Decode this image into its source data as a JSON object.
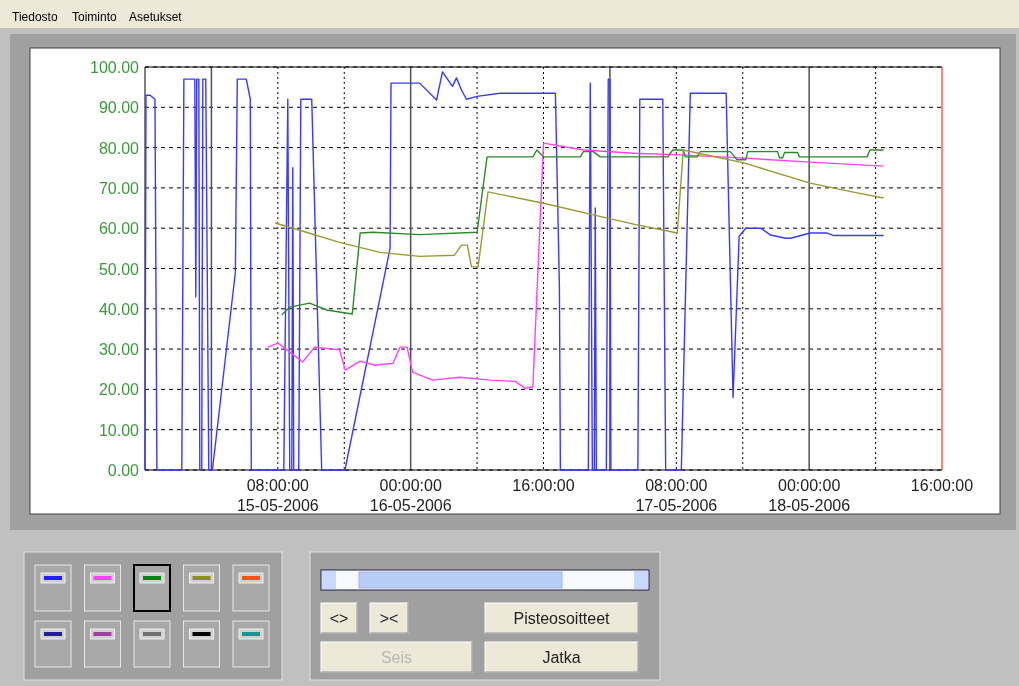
{
  "chart_data": {
    "type": "line",
    "xlim": [
      "2006-05-14T16:00",
      "2006-05-18T16:00"
    ],
    "xticks": [
      {
        "value": "2006-05-15T00:00",
        "label": null
      },
      {
        "value": "2006-05-15T08:00",
        "label": "08:00:00\n15-05-2006"
      },
      {
        "value": "2006-05-15T16:00",
        "label": null
      },
      {
        "value": "2006-05-16T00:00",
        "label": "00:00:00\n16-05-2006"
      },
      {
        "value": "2006-05-16T08:00",
        "label": null
      },
      {
        "value": "2006-05-16T16:00",
        "label": "16:00:00"
      },
      {
        "value": "2006-05-17T00:00",
        "label": null
      },
      {
        "value": "2006-05-17T08:00",
        "label": "08:00:00\n17-05-2006"
      },
      {
        "value": "2006-05-17T16:00",
        "label": null
      },
      {
        "value": "2006-05-18T00:00",
        "label": "00:00:00\n18-05-2006"
      },
      {
        "value": "2006-05-18T08:00",
        "label": null
      },
      {
        "value": "2006-05-18T16:00",
        "label": "16:00:00"
      }
    ],
    "ylim": [
      0,
      100
    ],
    "yticks": [
      {
        "value": 0,
        "label": "0.00"
      },
      {
        "value": 10,
        "label": "10.00"
      },
      {
        "value": 20,
        "label": "20.00"
      },
      {
        "value": 30,
        "label": "30.00"
      },
      {
        "value": 40,
        "label": "40.00"
      },
      {
        "value": 50,
        "label": "50.00"
      },
      {
        "value": 60,
        "label": "60.00"
      },
      {
        "value": 70,
        "label": "70.00"
      },
      {
        "value": 80,
        "label": "80.00"
      },
      {
        "value": 90,
        "label": "90.00"
      },
      {
        "value": 100,
        "label": "100.00"
      }
    ],
    "grid": true,
    "ref_lines": [
      {
        "axis": "x",
        "value": "2006-05-18T16:00",
        "color": "#ff6040"
      }
    ],
    "series": [
      {
        "color": "#3a3aff",
        "x": [
          "2006-05-14T16:00",
          "2006-05-14T16:07",
          "2006-05-14T16:36",
          "2006-05-14T17:12",
          "2006-05-14T17:26",
          "2006-05-14T20:26",
          "2006-05-14T20:41",
          "2006-05-14T22:00",
          "2006-05-14T22:07",
          "2006-05-14T22:14",
          "2006-05-14T22:29",
          "2006-05-14T22:36",
          "2006-05-14T22:50",
          "2006-05-14T22:58",
          "2006-05-14T23:19",
          "2006-05-14T23:41",
          "2006-05-15T00:07",
          "2006-05-15T02:53",
          "2006-05-15T03:07",
          "2006-05-15T04:12",
          "2006-05-15T04:41",
          "2006-05-15T04:48",
          "2006-05-15T08:43",
          "2006-05-15T09:12",
          "2006-05-15T09:26",
          "2006-05-15T09:41",
          "2006-05-15T09:48",
          "2006-05-15T09:55",
          "2006-05-15T10:31",
          "2006-05-15T10:46",
          "2006-05-15T12:05",
          "2006-05-15T13:17",
          "2006-05-15T16:05",
          "2006-05-15T21:31",
          "2006-05-15T21:38",
          "2006-05-16T01:05",
          "2006-05-16T03:07",
          "2006-05-16T03:50",
          "2006-05-16T05:02",
          "2006-05-16T05:31",
          "2006-05-16T06:07",
          "2006-05-16T06:43",
          "2006-05-16T08:00",
          "2006-05-16T10:46",
          "2006-05-16T17:12",
          "2006-05-16T17:26",
          "2006-05-16T17:55",
          "2006-05-16T18:02",
          "2006-05-16T21:24",
          "2006-05-16T21:38",
          "2006-05-16T21:53",
          "2006-05-16T22:07",
          "2006-05-16T22:14",
          "2006-05-16T22:22",
          "2006-05-16T23:34",
          "2006-05-16T23:48",
          "2006-05-17T00:00",
          "2006-05-17T00:07",
          "2006-05-17T03:22",
          "2006-05-17T03:36",
          "2006-05-17T06:22",
          "2006-05-17T06:43",
          "2006-05-17T08:36",
          "2006-05-17T09:41",
          "2006-05-17T14:00",
          "2006-05-17T14:50",
          "2006-05-17T15:34",
          "2006-05-17T16:22",
          "2006-05-17T18:10",
          "2006-05-17T19:22",
          "2006-05-17T21:10",
          "2006-05-17T21:46",
          "2006-05-18T00:07",
          "2006-05-18T02:10",
          "2006-05-18T02:53",
          "2006-05-18T08:58"
        ],
        "values": [
          0,
          93,
          93,
          92,
          0,
          0,
          97,
          97,
          43,
          97,
          97,
          0,
          0,
          97,
          97,
          0,
          0,
          49,
          97,
          97,
          92,
          0,
          0,
          92,
          0,
          0,
          75,
          0,
          0,
          92,
          92,
          0,
          0,
          55,
          96,
          96,
          91.8,
          98.8,
          95.2,
          97.3,
          94.3,
          92,
          92.7,
          93.5,
          93.5,
          93.5,
          45.4,
          0,
          0,
          96,
          0,
          0,
          65,
          0,
          0,
          97,
          97,
          0,
          0,
          92,
          92,
          0,
          0,
          93.5,
          93.5,
          18,
          58,
          60,
          60,
          58.3,
          57.5,
          57.5,
          58.8,
          58.8,
          58.2,
          58.2
        ]
      },
      {
        "color": "#ff40ff",
        "x": [
          "2006-05-15T06:50",
          "2006-05-15T08:00",
          "2006-05-15T09:05",
          "2006-05-15T11:00",
          "2006-05-15T12:26",
          "2006-05-15T15:26",
          "2006-05-15T16:07",
          "2006-05-15T17:55",
          "2006-05-15T19:43",
          "2006-05-15T21:53",
          "2006-05-15T22:43",
          "2006-05-15T23:34",
          "2006-05-16T00:14",
          "2006-05-16T02:38",
          "2006-05-16T05:53",
          "2006-05-16T09:34",
          "2006-05-16T12:34",
          "2006-05-16T13:46",
          "2006-05-16T14:43",
          "2006-05-16T16:00",
          "2006-05-16T20:48",
          "2006-05-17T02:53",
          "2006-05-17T08:29",
          "2006-05-17T16:07",
          "2006-05-18T00:07",
          "2006-05-18T08:58"
        ],
        "values": [
          30.5,
          31.5,
          29.8,
          26.8,
          30.5,
          29.8,
          24.8,
          27,
          26,
          26.5,
          30.5,
          30.5,
          24.3,
          22.3,
          23,
          22.3,
          22,
          20.3,
          20.6,
          81.1,
          79.4,
          78.6,
          78.2,
          77.4,
          76.4,
          75.4
        ]
      },
      {
        "color": "#2a8a2a",
        "x": [
          "2006-05-15T08:29",
          "2006-05-15T09:26",
          "2006-05-15T11:50",
          "2006-05-15T13:53",
          "2006-05-15T16:58",
          "2006-05-15T17:55",
          "2006-05-15T19:29",
          "2006-05-16T01:05",
          "2006-05-16T08:00",
          "2006-05-16T09:12",
          "2006-05-16T14:43",
          "2006-05-16T15:12",
          "2006-05-16T16:00",
          "2006-05-16T20:26",
          "2006-05-16T20:48",
          "2006-05-16T22:00",
          "2006-05-16T22:50",
          "2006-05-17T06:58",
          "2006-05-17T07:34",
          "2006-05-17T08:50",
          "2006-05-17T09:05",
          "2006-05-17T10:31",
          "2006-05-17T10:53",
          "2006-05-17T14:29",
          "2006-05-17T15:19",
          "2006-05-17T16:22",
          "2006-05-17T16:36",
          "2006-05-17T20:12",
          "2006-05-17T20:26",
          "2006-05-17T20:48",
          "2006-05-17T21:02",
          "2006-05-17T22:36",
          "2006-05-17T22:50",
          "2006-05-18T06:58",
          "2006-05-18T07:19",
          "2006-05-18T08:58"
        ],
        "values": [
          38.5,
          40.4,
          41.4,
          39.7,
          38.7,
          58.8,
          59,
          58.4,
          59,
          77.7,
          77.7,
          79.4,
          77.7,
          77.7,
          79,
          79,
          77.7,
          77.7,
          79.4,
          79.4,
          77.7,
          77.7,
          79,
          79,
          77,
          77,
          79,
          79,
          77.5,
          77.5,
          78.8,
          78.8,
          77.7,
          77.7,
          79.4,
          79.4
        ]
      },
      {
        "color": "#9a9a30",
        "x": [
          "2006-05-15T07:41",
          "2006-05-15T10:38",
          "2006-05-15T15:26",
          "2006-05-15T20:19",
          "2006-05-16T01:05",
          "2006-05-16T05:17",
          "2006-05-16T06:07",
          "2006-05-16T06:50",
          "2006-05-16T07:19",
          "2006-05-16T08:07",
          "2006-05-16T09:19",
          "2006-05-16T16:00",
          "2006-05-16T22:00",
          "2006-05-17T02:53",
          "2006-05-17T08:07",
          "2006-05-17T08:50",
          "2006-05-17T16:07",
          "2006-05-18T00:07",
          "2006-05-18T05:10",
          "2006-05-18T08:58"
        ],
        "values": [
          61.3,
          59.5,
          56.5,
          54,
          53,
          53.3,
          55.8,
          55.8,
          50.4,
          50.4,
          69,
          66.2,
          63.3,
          61,
          58.8,
          79.4,
          76.2,
          71.2,
          69,
          67.5
        ]
      }
    ],
    "annotations": [
      "Tiedosto",
      "Toiminto",
      "Asetukset",
      "<>",
      "><",
      "Pisteosoitteet",
      "Seis",
      "Jatka"
    ]
  }
}
